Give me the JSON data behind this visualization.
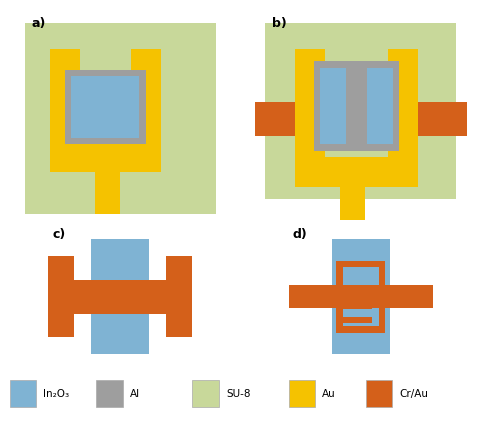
{
  "colors": {
    "In2O3": "#7fb3d3",
    "Al": "#9e9e9e",
    "SU8": "#c8d89a",
    "Au": "#f5c200",
    "CrAu": "#d4601a"
  },
  "legend": [
    {
      "label": "In₂O₃",
      "color": "#7fb3d3"
    },
    {
      "label": "Al",
      "color": "#9e9e9e"
    },
    {
      "label": "SU-8",
      "color": "#c8d89a"
    },
    {
      "label": "Au",
      "color": "#f5c200"
    },
    {
      "label": "Cr/Au",
      "color": "#d4601a"
    }
  ],
  "bg_color": "#ffffff"
}
